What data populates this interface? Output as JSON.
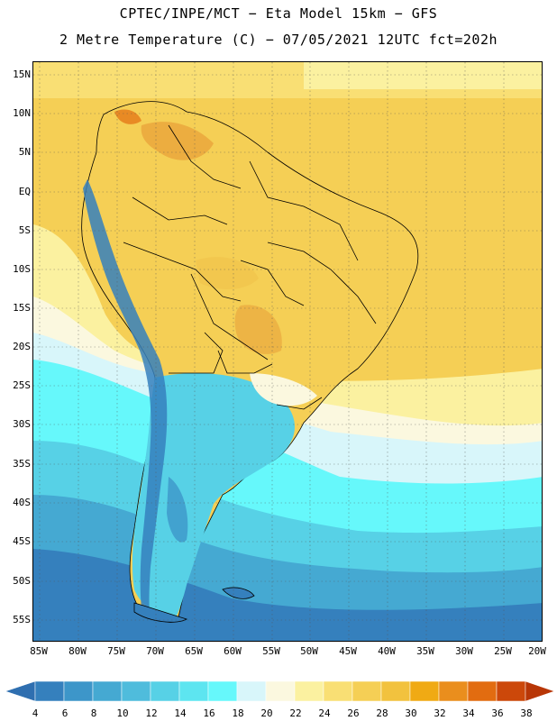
{
  "title": {
    "line1": "CPTEC/INPE/MCT −  Eta Model 15km − GFS",
    "line2": "2 Metre Temperature (C) − 07/05/2021 12UTC fct=202h"
  },
  "axes": {
    "lat_ticks": [
      "15N",
      "10N",
      "5N",
      "EQ",
      "5S",
      "10S",
      "15S",
      "20S",
      "25S",
      "30S",
      "35S",
      "40S",
      "45S",
      "50S",
      "55S"
    ],
    "lon_ticks": [
      "85W",
      "80W",
      "75W",
      "70W",
      "65W",
      "60W",
      "55W",
      "50W",
      "45W",
      "40W",
      "35W",
      "30W",
      "25W",
      "20W"
    ]
  },
  "colorbar": {
    "labels": [
      "4",
      "6",
      "8",
      "10",
      "12",
      "14",
      "16",
      "18",
      "20",
      "22",
      "24",
      "26",
      "28",
      "30",
      "32",
      "34",
      "36",
      "38"
    ],
    "colors": [
      "#2f6fb0",
      "#3580bd",
      "#3d96c9",
      "#45a9d2",
      "#4fbcdc",
      "#57d1e6",
      "#5de5f0",
      "#66f8fb",
      "#d8f6fa",
      "#fbf8df",
      "#fbf1a0",
      "#f9df74",
      "#f5cf55",
      "#f2c23e",
      "#f0aa14",
      "#ea8e1d",
      "#e26c10",
      "#cc480a",
      "#b83606"
    ]
  },
  "colors": {
    "warm_land": "#f7cf56",
    "hot_spots": "#e8a23a",
    "cool_south": "#57d1e6",
    "andes_cold": "#3580bd"
  }
}
